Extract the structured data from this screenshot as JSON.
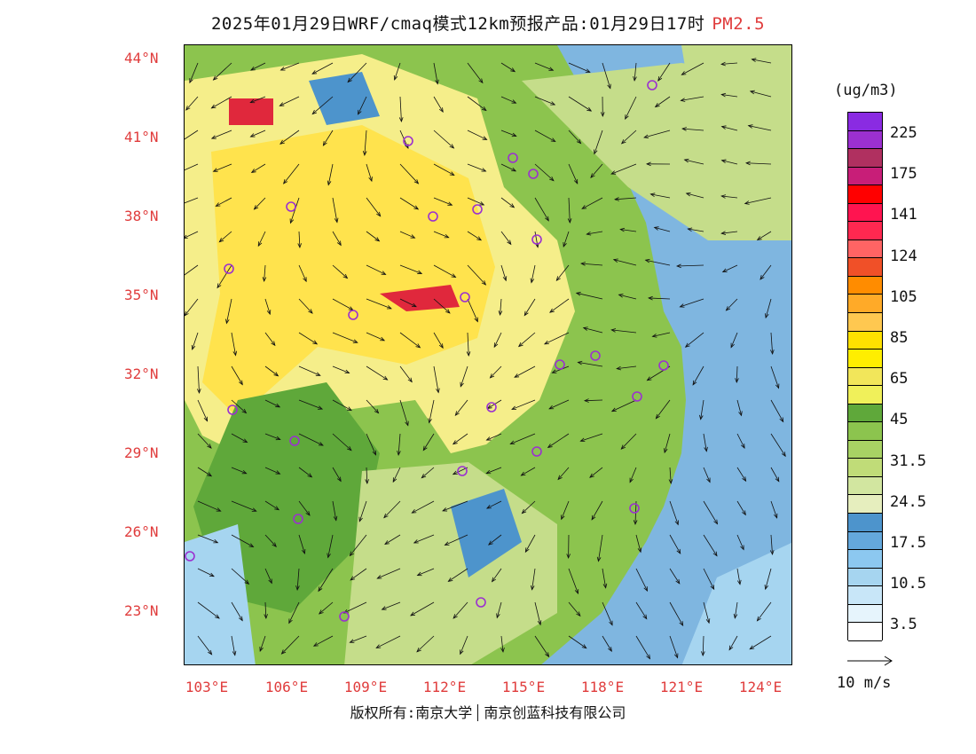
{
  "title": {
    "main": "2025年01月29日WRF/cmaq模式12km预报产品:01月29日17时",
    "species": "PM2.5"
  },
  "map": {
    "lat_labels": [
      "44°N",
      "41°N",
      "38°N",
      "35°N",
      "32°N",
      "29°N",
      "26°N",
      "23°N"
    ],
    "lon_labels": [
      "103°E",
      "106°E",
      "109°E",
      "112°E",
      "115°E",
      "118°E",
      "121°E",
      "124°E"
    ],
    "colors": {
      "ocean": "#7fb6e0",
      "yellow": "#ffe34d",
      "lightyellow": "#f5ee8a",
      "green": "#8cc44e",
      "darkgreen": "#5fa83a",
      "palegreen": "#c5dd8a",
      "blue": "#4d94cc",
      "lightblue": "#a6d5f0",
      "red": "#e0283c",
      "marker": "#9b30d0"
    }
  },
  "legend": {
    "unit": "(ug/m3)",
    "colors": [
      "#8a2be2",
      "#9b30d0",
      "#b03060",
      "#c81e78",
      "#ff0000",
      "#ff1450",
      "#ff2850",
      "#ff6464",
      "#f05028",
      "#ff8c00",
      "#ffaa28",
      "#ffc850",
      "#ffe100",
      "#ffee00",
      "#f2e65a",
      "#f0f05a",
      "#5fa83a",
      "#8cc44e",
      "#a8d264",
      "#c0dc78",
      "#d2e6a0",
      "#e6eebe",
      "#4d94cc",
      "#64a8dc",
      "#8cc8f0",
      "#a6d5f0",
      "#c8e6f8",
      "#e6f4fc",
      "#ffffff"
    ],
    "ticks": [
      "225",
      "175",
      "141",
      "124",
      "105",
      "85",
      "65",
      "45",
      "31.5",
      "24.5",
      "17.5",
      "10.5",
      "3.5"
    ]
  },
  "reference_vector": {
    "label": "10 m/s"
  },
  "copyright": {
    "part1": "版权所有:南京大学",
    "part2": "南京创蓝科技有限公司"
  }
}
